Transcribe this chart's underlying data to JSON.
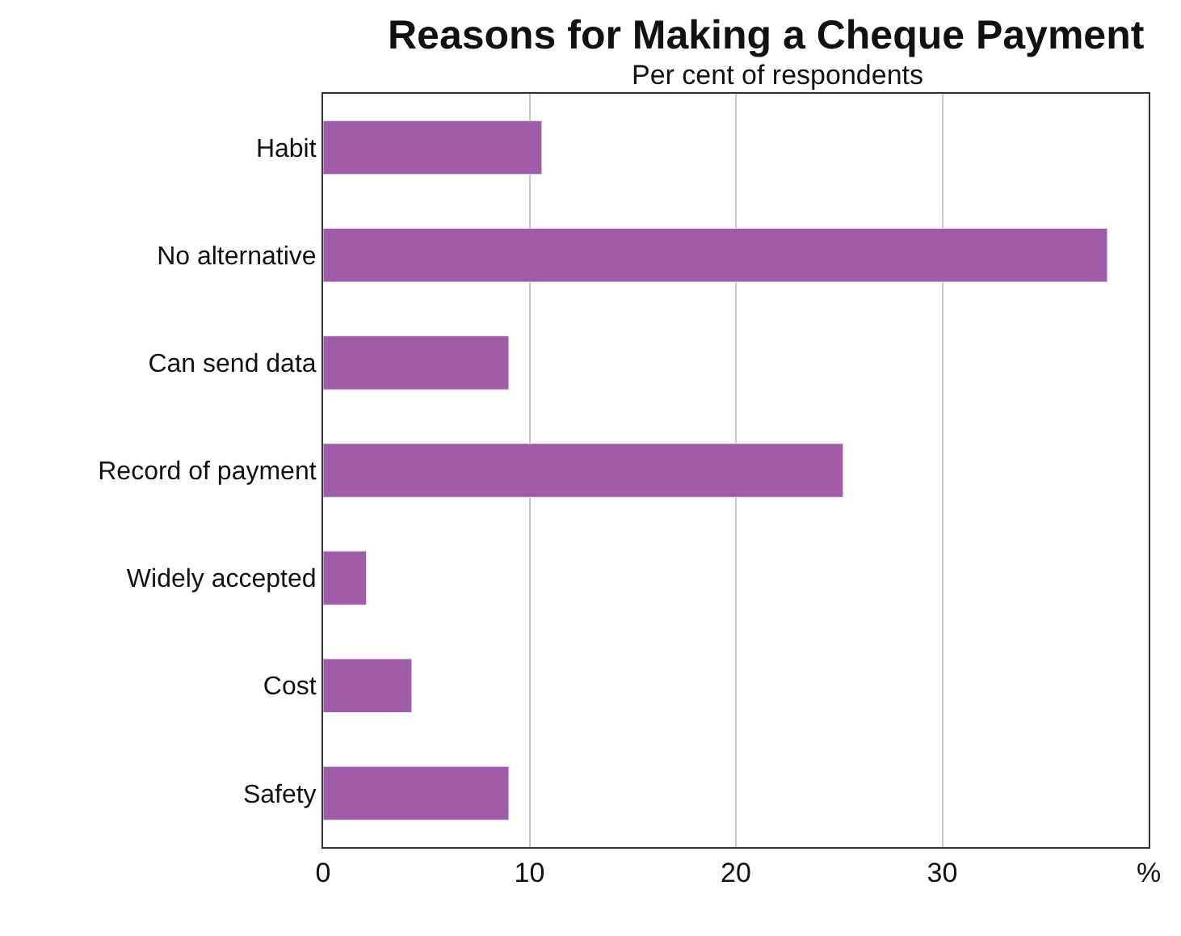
{
  "chart_data": {
    "type": "bar",
    "orientation": "horizontal",
    "title": "Reasons for Making a Cheque Payment",
    "subtitle": "Per cent of respondents",
    "categories": [
      "Habit",
      "No alternative",
      "Can send data",
      "Record of payment",
      "Widely accepted",
      "Cost",
      "Safety"
    ],
    "values": [
      10.6,
      38.0,
      9.0,
      25.2,
      2.1,
      4.3,
      9.0
    ],
    "color": "#a05ca8",
    "xlim": [
      0,
      40
    ],
    "xticks": [
      0,
      10,
      20,
      30,
      {
        "value": 40,
        "label": "%"
      }
    ],
    "grid": "x",
    "legend": false
  }
}
